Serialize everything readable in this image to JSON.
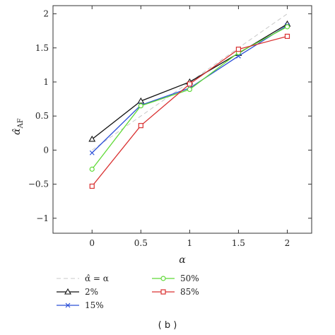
{
  "caption": "( b )",
  "chart_data": {
    "type": "line",
    "xlabel": "α",
    "ylabel": "α̂",
    "ylabel_subscript": "AF",
    "xlim": [
      -0.4,
      2.25
    ],
    "ylim": [
      -1.22,
      2.12
    ],
    "x_ticks": [
      0,
      0.5,
      1,
      1.5,
      2
    ],
    "x_tick_labels": [
      "0",
      "0.5",
      "1",
      "1.5",
      "2"
    ],
    "y_ticks": [
      -1,
      -0.5,
      0,
      0.5,
      1,
      1.5,
      2
    ],
    "y_tick_labels": [
      "−1",
      "−0.5",
      "0",
      "0.5",
      "1",
      "1.5",
      "2"
    ],
    "grid": false,
    "legend_position": "below plot",
    "series": [
      {
        "name": "α̂ = α",
        "x": [
          0,
          2
        ],
        "y": [
          0,
          2
        ],
        "color": "#c8c8c8",
        "marker": "none",
        "dashed": true
      },
      {
        "name": "2%",
        "x": [
          0,
          0.5,
          1,
          1.5,
          2
        ],
        "y": [
          0.16,
          0.72,
          1.0,
          1.42,
          1.85
        ],
        "color": "#111111",
        "marker": "triangle"
      },
      {
        "name": "15%",
        "x": [
          0,
          0.5,
          1,
          1.5,
          2
        ],
        "y": [
          -0.04,
          0.66,
          0.91,
          1.38,
          1.83
        ],
        "color": "#2b4fd8",
        "marker": "x"
      },
      {
        "name": "50%",
        "x": [
          0,
          0.5,
          1,
          1.5,
          2
        ],
        "y": [
          -0.28,
          0.65,
          0.89,
          1.43,
          1.81
        ],
        "color": "#5fd936",
        "marker": "circle"
      },
      {
        "name": "85%",
        "x": [
          0,
          0.5,
          1,
          1.5,
          2
        ],
        "y": [
          -0.53,
          0.36,
          0.97,
          1.48,
          1.67
        ],
        "color": "#d93030",
        "marker": "square"
      }
    ]
  }
}
